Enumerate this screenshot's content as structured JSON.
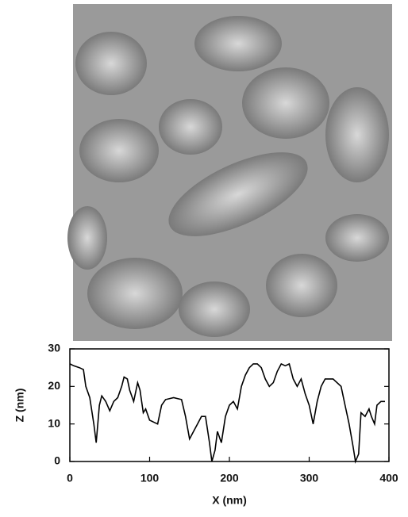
{
  "chart_data": {
    "type": "line",
    "x_label": "X (nm)",
    "y_label": "Z (nm)",
    "x": [
      0,
      5,
      12,
      17,
      20,
      25,
      30,
      33,
      37,
      40,
      45,
      50,
      55,
      60,
      65,
      68,
      72,
      75,
      80,
      85,
      88,
      92,
      95,
      100,
      105,
      110,
      115,
      120,
      130,
      140,
      145,
      150,
      155,
      160,
      165,
      170,
      175,
      178,
      182,
      185,
      190,
      195,
      200,
      205,
      210,
      215,
      220,
      225,
      230,
      235,
      240,
      245,
      250,
      255,
      260,
      265,
      270,
      275,
      280,
      285,
      290,
      295,
      300,
      305,
      310,
      315,
      320,
      330,
      340,
      345,
      350,
      355,
      358,
      362,
      365,
      370,
      375,
      378,
      382,
      385,
      390,
      395
    ],
    "values": [
      26,
      25.5,
      25,
      24.5,
      20,
      17,
      10,
      5,
      15,
      17.5,
      16,
      13.5,
      16,
      17,
      20,
      22.5,
      22,
      19,
      16,
      21,
      19,
      13,
      14,
      11,
      10.5,
      10,
      15,
      16.5,
      17,
      16.5,
      12,
      6,
      8,
      10,
      12,
      12,
      5,
      0,
      3,
      8,
      5,
      12,
      15,
      16,
      14,
      20,
      23,
      25,
      26,
      26,
      25,
      22,
      20,
      21,
      24,
      26,
      25.5,
      26,
      22,
      20,
      22,
      18,
      15,
      10,
      16,
      20,
      22,
      22,
      20,
      15,
      10,
      4,
      0,
      2,
      13,
      12,
      14,
      12,
      10,
      15,
      16,
      16
    ],
    "color": "#000000",
    "xlim": [
      0,
      400
    ],
    "xticks": [
      0,
      100,
      200,
      300,
      400
    ],
    "ylim": [
      0,
      30
    ],
    "yticks": [
      0,
      10,
      20,
      30
    ]
  }
}
